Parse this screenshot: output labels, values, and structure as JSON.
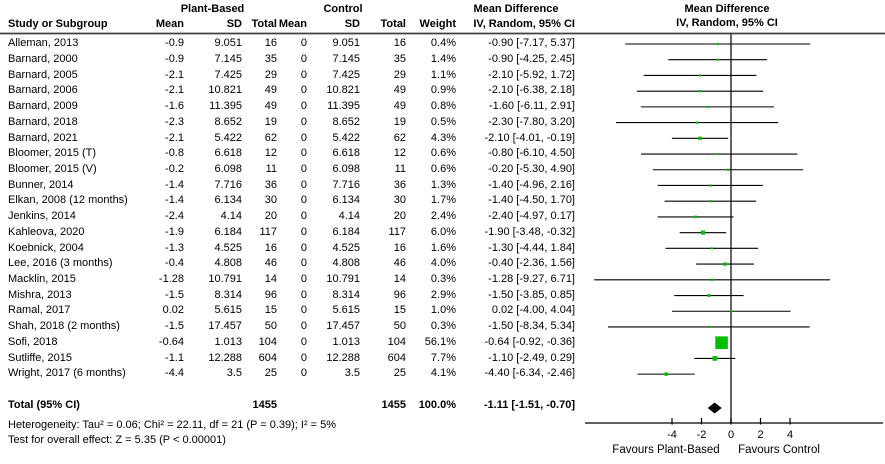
{
  "header": {
    "plant_based": "Plant-Based",
    "control": "Control",
    "mean_difference": "Mean Difference",
    "method_ci": "IV, Random, 95% CI",
    "columns": {
      "study": "Study or Subgroup",
      "mean": "Mean",
      "sd": "SD",
      "total": "Total",
      "weight": "Weight"
    }
  },
  "footer": {
    "heterogeneity": "Heterogeneity: Tau² = 0.06; Chi² = 22.11, df = 21 (P = 0.39); I² = 5%",
    "overall_effect": "Test for overall effect: Z = 5.35 (P < 0.00001)"
  },
  "axis": {
    "favours_left": "Favours Plant-Based",
    "favours_right": "Favours Control"
  },
  "colors": {
    "marker_green": "#00bf00",
    "diamond_black": "#000000",
    "ci_line": "#000000",
    "frame_gray": "#404040"
  },
  "chart_data": {
    "type": "scatter",
    "subtype": "forest-plot",
    "title": "Mean Difference",
    "effect_model": "IV, Random, 95% CI",
    "x_ticks": [
      -4,
      -2,
      0,
      2,
      4
    ],
    "xlim": [
      -9.9,
      10.3
    ],
    "studies": [
      {
        "name": "Alleman, 2013",
        "mean_pb": -0.9,
        "sd_pb": 9.051,
        "n_pb": 16,
        "mean_ctrl": 0,
        "sd_ctrl": 9.051,
        "n_ctrl": 16,
        "weight_pct": 0.4,
        "md": -0.9,
        "ci_low": -7.17,
        "ci_high": 5.37
      },
      {
        "name": "Barnard, 2000",
        "mean_pb": -0.9,
        "sd_pb": 7.145,
        "n_pb": 35,
        "mean_ctrl": 0,
        "sd_ctrl": 7.145,
        "n_ctrl": 35,
        "weight_pct": 1.4,
        "md": -0.9,
        "ci_low": -4.25,
        "ci_high": 2.45
      },
      {
        "name": "Barnard, 2005",
        "mean_pb": -2.1,
        "sd_pb": 7.425,
        "n_pb": 29,
        "mean_ctrl": 0,
        "sd_ctrl": 7.425,
        "n_ctrl": 29,
        "weight_pct": 1.1,
        "md": -2.1,
        "ci_low": -5.92,
        "ci_high": 1.72
      },
      {
        "name": "Barnard, 2006",
        "mean_pb": -2.1,
        "sd_pb": 10.821,
        "n_pb": 49,
        "mean_ctrl": 0,
        "sd_ctrl": 10.821,
        "n_ctrl": 49,
        "weight_pct": 0.9,
        "md": -2.1,
        "ci_low": -6.38,
        "ci_high": 2.18
      },
      {
        "name": "Barnard, 2009",
        "mean_pb": -1.6,
        "sd_pb": 11.395,
        "n_pb": 49,
        "mean_ctrl": 0,
        "sd_ctrl": 11.395,
        "n_ctrl": 49,
        "weight_pct": 0.8,
        "md": -1.6,
        "ci_low": -6.11,
        "ci_high": 2.91
      },
      {
        "name": "Barnard, 2018",
        "mean_pb": -2.3,
        "sd_pb": 8.652,
        "n_pb": 19,
        "mean_ctrl": 0,
        "sd_ctrl": 8.652,
        "n_ctrl": 19,
        "weight_pct": 0.5,
        "md": -2.3,
        "ci_low": -7.8,
        "ci_high": 3.2
      },
      {
        "name": "Barnard, 2021",
        "mean_pb": -2.1,
        "sd_pb": 5.422,
        "n_pb": 62,
        "mean_ctrl": 0,
        "sd_ctrl": 5.422,
        "n_ctrl": 62,
        "weight_pct": 4.3,
        "md": -2.1,
        "ci_low": -4.01,
        "ci_high": -0.19
      },
      {
        "name": "Bloomer, 2015 (T)",
        "mean_pb": -0.8,
        "sd_pb": 6.618,
        "n_pb": 12,
        "mean_ctrl": 0,
        "sd_ctrl": 6.618,
        "n_ctrl": 12,
        "weight_pct": 0.6,
        "md": -0.8,
        "ci_low": -6.1,
        "ci_high": 4.5
      },
      {
        "name": "Bloomer, 2015 (V)",
        "mean_pb": -0.2,
        "sd_pb": 6.098,
        "n_pb": 11,
        "mean_ctrl": 0,
        "sd_ctrl": 6.098,
        "n_ctrl": 11,
        "weight_pct": 0.6,
        "md": -0.2,
        "ci_low": -5.3,
        "ci_high": 4.9
      },
      {
        "name": "Bunner, 2014",
        "mean_pb": -1.4,
        "sd_pb": 7.716,
        "n_pb": 36,
        "mean_ctrl": 0,
        "sd_ctrl": 7.716,
        "n_ctrl": 36,
        "weight_pct": 1.3,
        "md": -1.4,
        "ci_low": -4.96,
        "ci_high": 2.16
      },
      {
        "name": "Elkan, 2008 (12 months)",
        "mean_pb": -1.4,
        "sd_pb": 6.134,
        "n_pb": 30,
        "mean_ctrl": 0,
        "sd_ctrl": 6.134,
        "n_ctrl": 30,
        "weight_pct": 1.7,
        "md": -1.4,
        "ci_low": -4.5,
        "ci_high": 1.7
      },
      {
        "name": "Jenkins, 2014",
        "mean_pb": -2.4,
        "sd_pb": 4.14,
        "n_pb": 20,
        "mean_ctrl": 0,
        "sd_ctrl": 4.14,
        "n_ctrl": 20,
        "weight_pct": 2.4,
        "md": -2.4,
        "ci_low": -4.97,
        "ci_high": 0.17
      },
      {
        "name": "Kahleova, 2020",
        "mean_pb": -1.9,
        "sd_pb": 6.184,
        "n_pb": 117,
        "mean_ctrl": 0,
        "sd_ctrl": 6.184,
        "n_ctrl": 117,
        "weight_pct": 6.0,
        "md": -1.9,
        "ci_low": -3.48,
        "ci_high": -0.32
      },
      {
        "name": "Koebnick, 2004",
        "mean_pb": -1.3,
        "sd_pb": 4.525,
        "n_pb": 16,
        "mean_ctrl": 0,
        "sd_ctrl": 4.525,
        "n_ctrl": 16,
        "weight_pct": 1.6,
        "md": -1.3,
        "ci_low": -4.44,
        "ci_high": 1.84
      },
      {
        "name": "Lee, 2016 (3 months)",
        "mean_pb": -0.4,
        "sd_pb": 4.808,
        "n_pb": 46,
        "mean_ctrl": 0,
        "sd_ctrl": 4.808,
        "n_ctrl": 46,
        "weight_pct": 4.0,
        "md": -0.4,
        "ci_low": -2.36,
        "ci_high": 1.56
      },
      {
        "name": "Macklin, 2015",
        "mean_pb": -1.28,
        "sd_pb": 10.791,
        "n_pb": 14,
        "mean_ctrl": 0,
        "sd_ctrl": 10.791,
        "n_ctrl": 14,
        "weight_pct": 0.3,
        "md": -1.28,
        "ci_low": -9.27,
        "ci_high": 6.71
      },
      {
        "name": "Mishra, 2013",
        "mean_pb": -1.5,
        "sd_pb": 8.314,
        "n_pb": 96,
        "mean_ctrl": 0,
        "sd_ctrl": 8.314,
        "n_ctrl": 96,
        "weight_pct": 2.9,
        "md": -1.5,
        "ci_low": -3.85,
        "ci_high": 0.85
      },
      {
        "name": "Ramal, 2017",
        "mean_pb": 0.02,
        "sd_pb": 5.615,
        "n_pb": 15,
        "mean_ctrl": 0,
        "sd_ctrl": 5.615,
        "n_ctrl": 15,
        "weight_pct": 1.0,
        "md": 0.02,
        "ci_low": -4.0,
        "ci_high": 4.04
      },
      {
        "name": "Shah, 2018 (2 months)",
        "mean_pb": -1.5,
        "sd_pb": 17.457,
        "n_pb": 50,
        "mean_ctrl": 0,
        "sd_ctrl": 17.457,
        "n_ctrl": 50,
        "weight_pct": 0.3,
        "md": -1.5,
        "ci_low": -8.34,
        "ci_high": 5.34
      },
      {
        "name": "Sofi, 2018",
        "mean_pb": -0.64,
        "sd_pb": 1.013,
        "n_pb": 104,
        "mean_ctrl": 0,
        "sd_ctrl": 1.013,
        "n_ctrl": 104,
        "weight_pct": 56.1,
        "md": -0.64,
        "ci_low": -0.92,
        "ci_high": -0.36
      },
      {
        "name": "Sutliffe, 2015",
        "mean_pb": -1.1,
        "sd_pb": 12.288,
        "n_pb": 604,
        "mean_ctrl": 0,
        "sd_ctrl": 12.288,
        "n_ctrl": 604,
        "weight_pct": 7.7,
        "md": -1.1,
        "ci_low": -2.49,
        "ci_high": 0.29
      },
      {
        "name": "Wright, 2017 (6 months)",
        "mean_pb": -4.4,
        "sd_pb": 3.5,
        "n_pb": 25,
        "mean_ctrl": 0,
        "sd_ctrl": 3.5,
        "n_ctrl": 25,
        "weight_pct": 4.1,
        "md": -4.4,
        "ci_low": -6.34,
        "ci_high": -2.46
      }
    ],
    "total": {
      "label": "Total (95% CI)",
      "n_pb": 1455,
      "n_ctrl": 1455,
      "weight_pct": 100.0,
      "md": -1.11,
      "ci_low": -1.51,
      "ci_high": -0.7
    }
  }
}
